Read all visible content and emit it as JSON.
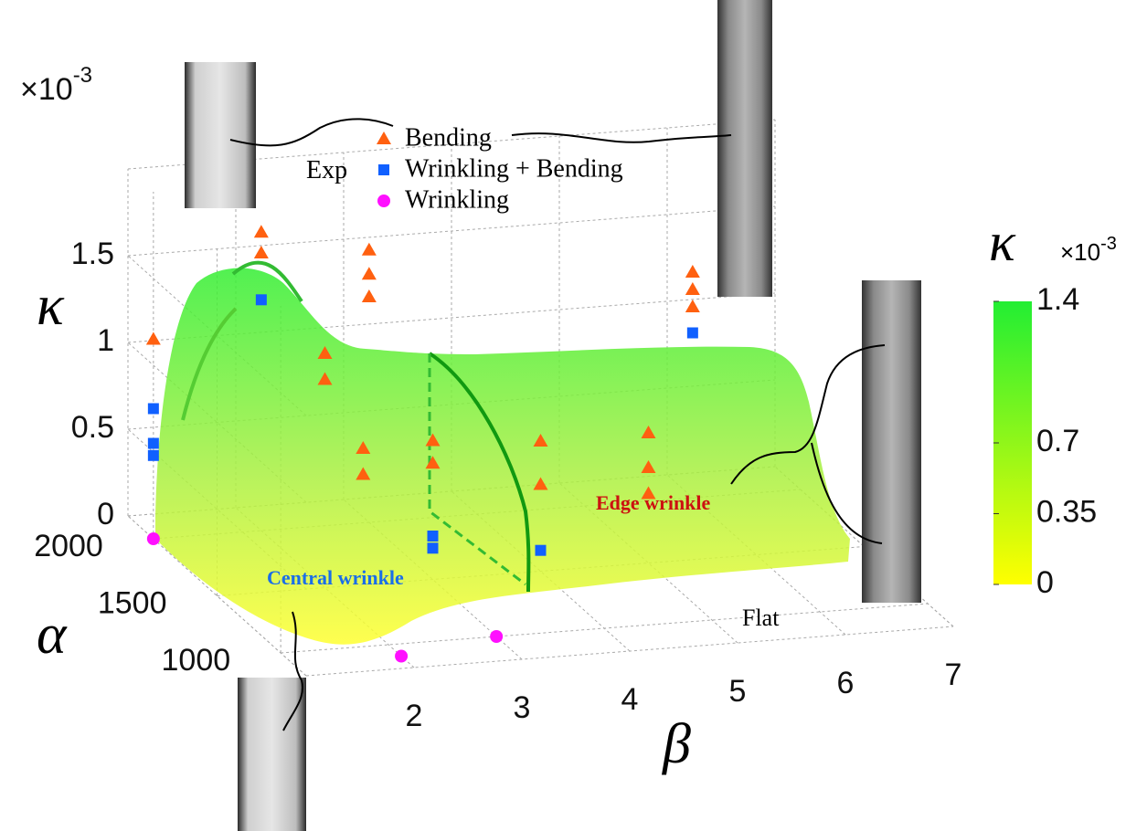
{
  "chart_data": {
    "type": "scatter3d",
    "x_label": "β",
    "z_label": "α",
    "y_label": "κ",
    "multiplier": {
      "base": "×10",
      "exp": "-3"
    },
    "xlim": [
      1,
      7
    ],
    "xticks": [
      2,
      3,
      4,
      5,
      6,
      7
    ],
    "zlim": [
      800,
      2200
    ],
    "zticks": [
      1000,
      1500,
      2000
    ],
    "ylim": [
      0,
      2
    ],
    "yticks": [
      0,
      0.5,
      1,
      1.5
    ],
    "grid": true,
    "legend_title": "Exp",
    "series": [
      {
        "name": "Bending",
        "marker": "triangle",
        "color": "#ff6010",
        "x": [
          1,
          2,
          2,
          3,
          3,
          3,
          2,
          2,
          2,
          2,
          3,
          3,
          4,
          4,
          5,
          5,
          5,
          6,
          6,
          6
        ],
        "z": [
          2000,
          2000,
          2000,
          2000,
          2000,
          2000,
          1500,
          1500,
          1200,
          1200,
          1500,
          1500,
          1500,
          1500,
          1500,
          1500,
          1500,
          2000,
          2000,
          2000
        ],
        "values": [
          1.15,
          1.72,
          1.6,
          1.57,
          1.43,
          1.3,
          1.35,
          1.2,
          1.0,
          0.85,
          0.8,
          0.67,
          0.75,
          0.5,
          0.75,
          0.55,
          0.4,
          1.3,
          1.2,
          1.1
        ]
      },
      {
        "name": "Wrinkling + Bending",
        "marker": "square",
        "color": "#1060ff",
        "x": [
          1,
          1,
          1,
          2,
          3,
          3,
          4,
          6
        ],
        "z": [
          2000,
          2000,
          2000,
          2000,
          1500,
          1500,
          1500,
          2000
        ],
        "values": [
          0.75,
          0.55,
          0.48,
          1.33,
          0.25,
          0.18,
          0.12,
          0.95
        ]
      },
      {
        "name": "Wrinkling",
        "marker": "circle",
        "color": "#ff10ff",
        "x": [
          1,
          3,
          2
        ],
        "z": [
          2000,
          1000,
          900
        ],
        "values": [
          0,
          0,
          0
        ]
      }
    ],
    "annotations": [
      "Central wrinkle",
      "Edge wrinkle",
      "Flat"
    ],
    "colorbar": {
      "label": "κ",
      "multiplier": {
        "base": "×10",
        "exp": "-3"
      },
      "lim": [
        0,
        1.4
      ],
      "ticks": [
        0,
        0.35,
        0.7,
        1.4
      ],
      "colors": [
        "#ffff00",
        "#22ee33"
      ]
    }
  }
}
